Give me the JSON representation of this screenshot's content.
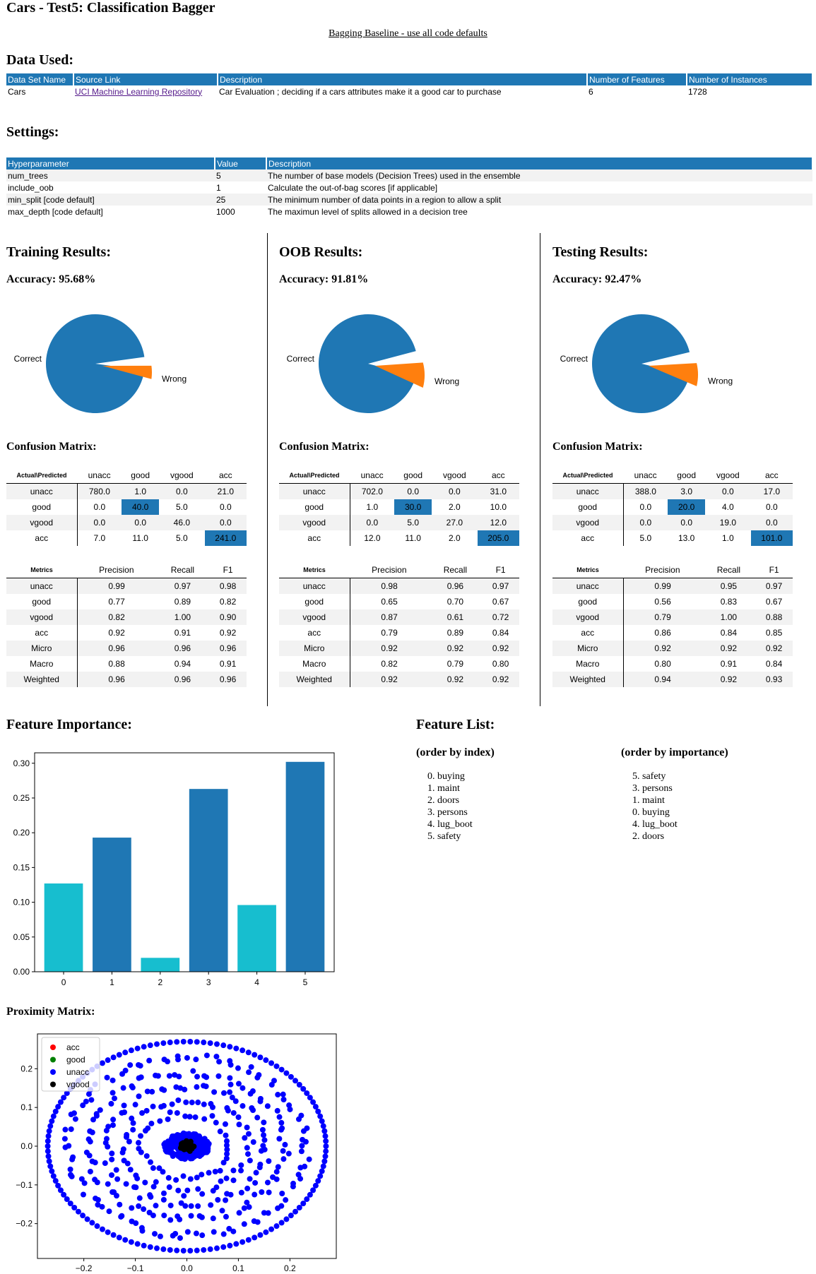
{
  "page": {
    "title": "Cars - Test5: Classification Bagger",
    "subtitle": "Bagging Baseline - use all code defaults"
  },
  "data_used": {
    "heading": "Data Used:",
    "columns": [
      "Data Set Name",
      "Source Link",
      "Description",
      "Number of Features",
      "Number of Instances"
    ],
    "row": [
      "Cars",
      "UCI Machine Learning Repository",
      "Car Evaluation ; deciding if a cars attributes make it a good car to purchase",
      "6",
      "1728"
    ]
  },
  "settings": {
    "heading": "Settings:",
    "columns": [
      "Hyperparameter",
      "Value",
      "Description"
    ],
    "rows": [
      [
        "num_trees",
        "5",
        "The number of base models (Decision Trees) used in the ensemble"
      ],
      [
        "include_oob",
        "1",
        "Calculate the out-of-bag scores [if applicable]"
      ],
      [
        "min_split [code default]",
        "25",
        "The minimum number of data points in a region to allow a split"
      ],
      [
        "max_depth [code default]",
        "1000",
        "The maximun level of splits allowed in a decision tree"
      ]
    ]
  },
  "results": [
    {
      "heading": "Training Results:",
      "accuracy": "Accuracy: 95.68%",
      "pie_labels": [
        "Correct",
        "Wrong"
      ],
      "pie_values": [
        95.68,
        4.32
      ],
      "cm_heading": "Confusion Matrix:",
      "cm_corner": "Actual\\Predicted",
      "cm_cols": [
        "unacc",
        "good",
        "vgood",
        "acc"
      ],
      "cm_rows": [
        [
          "unacc",
          "780.0",
          "1.0",
          "0.0",
          "21.0"
        ],
        [
          "good",
          "0.0",
          "40.0",
          "5.0",
          "0.0"
        ],
        [
          "vgood",
          "0.0",
          "0.0",
          "46.0",
          "0.0"
        ],
        [
          "acc",
          "7.0",
          "11.0",
          "5.0",
          "241.0"
        ]
      ],
      "m_corner": "Metrics",
      "m_cols": [
        "Precision",
        "Recall",
        "F1"
      ],
      "m_rows": [
        [
          "unacc",
          "0.99",
          "0.97",
          "0.98"
        ],
        [
          "good",
          "0.77",
          "0.89",
          "0.82"
        ],
        [
          "vgood",
          "0.82",
          "1.00",
          "0.90"
        ],
        [
          "acc",
          "0.92",
          "0.91",
          "0.92"
        ],
        [
          "Micro",
          "0.96",
          "0.96",
          "0.96"
        ],
        [
          "Macro",
          "0.88",
          "0.94",
          "0.91"
        ],
        [
          "Weighted",
          "0.96",
          "0.96",
          "0.96"
        ]
      ]
    },
    {
      "heading": "OOB Results:",
      "accuracy": "Accuracy: 91.81%",
      "pie_labels": [
        "Correct",
        "Wrong"
      ],
      "pie_values": [
        91.81,
        8.19
      ],
      "cm_heading": "Confusion Matrix:",
      "cm_corner": "Actual\\Predicted",
      "cm_cols": [
        "unacc",
        "good",
        "vgood",
        "acc"
      ],
      "cm_rows": [
        [
          "unacc",
          "702.0",
          "0.0",
          "0.0",
          "31.0"
        ],
        [
          "good",
          "1.0",
          "30.0",
          "2.0",
          "10.0"
        ],
        [
          "vgood",
          "0.0",
          "5.0",
          "27.0",
          "12.0"
        ],
        [
          "acc",
          "12.0",
          "11.0",
          "2.0",
          "205.0"
        ]
      ],
      "m_corner": "Metrics",
      "m_cols": [
        "Precision",
        "Recall",
        "F1"
      ],
      "m_rows": [
        [
          "unacc",
          "0.98",
          "0.96",
          "0.97"
        ],
        [
          "good",
          "0.65",
          "0.70",
          "0.67"
        ],
        [
          "vgood",
          "0.87",
          "0.61",
          "0.72"
        ],
        [
          "acc",
          "0.79",
          "0.89",
          "0.84"
        ],
        [
          "Micro",
          "0.92",
          "0.92",
          "0.92"
        ],
        [
          "Macro",
          "0.82",
          "0.79",
          "0.80"
        ],
        [
          "Weighted",
          "0.92",
          "0.92",
          "0.92"
        ]
      ]
    },
    {
      "heading": "Testing Results:",
      "accuracy": "Accuracy: 92.47%",
      "pie_labels": [
        "Correct",
        "Wrong"
      ],
      "pie_values": [
        92.47,
        7.53
      ],
      "cm_heading": "Confusion Matrix:",
      "cm_corner": "Actual\\Predicted",
      "cm_cols": [
        "unacc",
        "good",
        "vgood",
        "acc"
      ],
      "cm_rows": [
        [
          "unacc",
          "388.0",
          "3.0",
          "0.0",
          "17.0"
        ],
        [
          "good",
          "0.0",
          "20.0",
          "4.0",
          "0.0"
        ],
        [
          "vgood",
          "0.0",
          "0.0",
          "19.0",
          "0.0"
        ],
        [
          "acc",
          "5.0",
          "13.0",
          "1.0",
          "101.0"
        ]
      ],
      "m_corner": "Metrics",
      "m_cols": [
        "Precision",
        "Recall",
        "F1"
      ],
      "m_rows": [
        [
          "unacc",
          "0.99",
          "0.95",
          "0.97"
        ],
        [
          "good",
          "0.56",
          "0.83",
          "0.67"
        ],
        [
          "vgood",
          "0.79",
          "1.00",
          "0.88"
        ],
        [
          "acc",
          "0.86",
          "0.84",
          "0.85"
        ],
        [
          "Micro",
          "0.92",
          "0.92",
          "0.92"
        ],
        [
          "Macro",
          "0.80",
          "0.91",
          "0.84"
        ],
        [
          "Weighted",
          "0.94",
          "0.92",
          "0.93"
        ]
      ]
    }
  ],
  "feature_importance_heading": "Feature Importance:",
  "feature_list": {
    "heading": "Feature List:",
    "by_index_heading": "(order by index)",
    "by_index": [
      "0.  buying",
      "1.  maint",
      "2.  doors",
      "3.  persons",
      "4.  lug_boot",
      "5.  safety"
    ],
    "by_importance_heading": "(order by importance)",
    "by_importance": [
      "5.  safety",
      "3.  persons",
      "1.  maint",
      "0.  buying",
      "4.  lug_boot",
      "2.  doors"
    ]
  },
  "proximity_heading": "Proximity Matrix:",
  "colors": {
    "blue": "#1f77b4",
    "orange": "#ff7f0e",
    "cyan": "#17becf"
  },
  "chart_data": [
    {
      "type": "bar",
      "categories": [
        "0",
        "1",
        "2",
        "3",
        "4",
        "5"
      ],
      "values": [
        0.127,
        0.193,
        0.02,
        0.263,
        0.096,
        0.302
      ],
      "bar_colors": [
        "#17becf",
        "#1f77b4",
        "#17becf",
        "#1f77b4",
        "#17becf",
        "#1f77b4"
      ],
      "ylim": [
        0,
        0.315
      ],
      "yticks": [
        "0.00",
        "0.05",
        "0.10",
        "0.15",
        "0.20",
        "0.25",
        "0.30"
      ],
      "xlabel": "",
      "ylabel": "",
      "title": ""
    },
    {
      "type": "scatter",
      "xlim": [
        -0.29,
        0.29
      ],
      "ylim": [
        -0.29,
        0.29
      ],
      "xticks": [
        "−0.2",
        "−0.1",
        "0.0",
        "0.1",
        "0.2"
      ],
      "yticks": [
        "−0.2",
        "−0.1",
        "0.0",
        "0.1",
        "0.2"
      ],
      "legend_position": "top-left",
      "series": [
        {
          "name": "acc",
          "color": "red"
        },
        {
          "name": "good",
          "color": "green"
        },
        {
          "name": "unacc",
          "color": "blue"
        },
        {
          "name": "vgood",
          "color": "black"
        }
      ]
    }
  ]
}
